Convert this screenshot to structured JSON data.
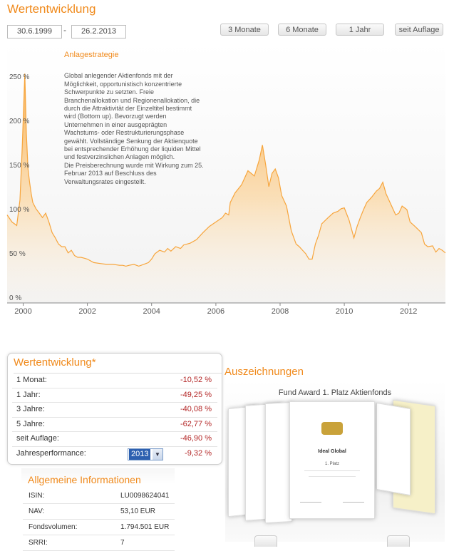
{
  "header": {
    "title": "Wertentwicklung",
    "date_from": "30.6.1999",
    "date_to": "26.2.2013",
    "range_buttons": [
      "3 Monate",
      "6 Monate",
      "1 Jahr",
      "seit Auflage"
    ]
  },
  "strategy": {
    "title": "Anlagestrategie",
    "text": "Global anlegender Aktienfonds mit der Möglichkeit, opportunistisch konzentrierte Schwerpunkte zu setzten. Freie Branchenallokation und Regionenallokation, die durch die Attraktivität der Einzeltitel bestimmt wird (Bottom up). Bevorzugt werden Unternehmen in einer ausgeprägten Wachstums- oder Restrukturierungsphase gewählt. Vollständige Senkung der Aktienquote bei entsprechender Erhöhung der liquiden Mittel und festverzinslichen Anlagen möglich.",
    "note": "Die Preisberechnung wurde mit Wirkung zum 25. Februar 2013 auf Beschluss des Verwaltungsrates eingestellt."
  },
  "chart_data": {
    "type": "area",
    "title": "Wertentwicklung",
    "xlabel": "",
    "ylabel": "",
    "xlim": [
      1999.5,
      2013.15
    ],
    "ylim": [
      0,
      250
    ],
    "y_ticks": [
      0,
      50,
      100,
      150,
      200,
      250
    ],
    "y_tick_labels": [
      "0 %",
      "50 %",
      "100 %",
      "150 %",
      "200 %",
      "250 %"
    ],
    "x_ticks": [
      2000,
      2002,
      2004,
      2006,
      2008,
      2010,
      2012
    ],
    "x_tick_labels": [
      "2000",
      "2002",
      "2004",
      "2006",
      "2008",
      "2010",
      "2012"
    ],
    "grid": false,
    "series": [
      {
        "name": "Wertentwicklung",
        "color": "#f7a53c",
        "x": [
          1999.5,
          1999.65,
          1999.8,
          1999.9,
          1999.97,
          2000.05,
          2000.1,
          2000.15,
          2000.2,
          2000.25,
          2000.3,
          2000.4,
          2000.5,
          2000.6,
          2000.7,
          2000.8,
          2000.9,
          2001.0,
          2001.1,
          2001.2,
          2001.3,
          2001.4,
          2001.5,
          2001.6,
          2001.7,
          2001.8,
          2001.9,
          2002.0,
          2002.2,
          2002.4,
          2002.6,
          2002.8,
          2003.0,
          2003.1,
          2003.2,
          2003.3,
          2003.45,
          2003.6,
          2003.75,
          2003.9,
          2004.0,
          2004.1,
          2004.25,
          2004.4,
          2004.5,
          2004.6,
          2004.75,
          2004.9,
          2005.0,
          2005.2,
          2005.4,
          2005.6,
          2005.8,
          2006.0,
          2006.2,
          2006.3,
          2006.4,
          2006.45,
          2006.6,
          2006.8,
          2007.0,
          2007.2,
          2007.35,
          2007.45,
          2007.55,
          2007.65,
          2007.75,
          2007.85,
          2007.95,
          2008.05,
          2008.2,
          2008.35,
          2008.5,
          2008.6,
          2008.7,
          2008.8,
          2008.9,
          2009.0,
          2009.1,
          2009.2,
          2009.3,
          2009.5,
          2009.65,
          2009.8,
          2009.9,
          2010.0,
          2010.15,
          2010.3,
          2010.4,
          2010.5,
          2010.6,
          2010.7,
          2010.85,
          2011.0,
          2011.1,
          2011.2,
          2011.3,
          2011.45,
          2011.6,
          2011.7,
          2011.8,
          2011.95,
          2012.05,
          2012.2,
          2012.4,
          2012.5,
          2012.6,
          2012.75,
          2012.85,
          2012.95,
          2013.05,
          2013.15
        ],
        "values": [
          98,
          90,
          86,
          115,
          175,
          258,
          190,
          150,
          135,
          122,
          112,
          105,
          100,
          95,
          100,
          90,
          78,
          72,
          65,
          62,
          62,
          55,
          58,
          52,
          50,
          50,
          49,
          48,
          44,
          43,
          42,
          42,
          41,
          41,
          40,
          41,
          42,
          40,
          42,
          44,
          48,
          54,
          58,
          56,
          60,
          57,
          62,
          60,
          64,
          66,
          70,
          78,
          85,
          90,
          95,
          100,
          98,
          112,
          123,
          132,
          148,
          142,
          160,
          177,
          155,
          130,
          145,
          150,
          140,
          120,
          108,
          80,
          65,
          62,
          58,
          54,
          48,
          48,
          65,
          75,
          88,
          95,
          100,
          102,
          105,
          106,
          92,
          72,
          85,
          95,
          104,
          112,
          118,
          125,
          128,
          135,
          122,
          110,
          98,
          100,
          108,
          104,
          90,
          85,
          78,
          65,
          62,
          63,
          56,
          60,
          58,
          55
        ]
      }
    ]
  },
  "performance": {
    "title": "Wertentwicklung*",
    "rows": [
      {
        "label": "1 Monat:",
        "value": "-10,52 %"
      },
      {
        "label": "1 Jahr:",
        "value": "-49,25 %"
      },
      {
        "label": "3 Jahre:",
        "value": "-40,08 %"
      },
      {
        "label": "5 Jahre:",
        "value": "-62,77 %"
      },
      {
        "label": "seit Auflage:",
        "value": "-46,90 %"
      }
    ],
    "yearly_label": "Jahresperformance:",
    "selected_year": "2013",
    "yearly_value": "-9,32 %"
  },
  "info": {
    "title": "Allgemeine Informationen",
    "rows": [
      {
        "label": "ISIN:",
        "value": "LU0098624041"
      },
      {
        "label": "NAV:",
        "value": "53,10 EUR"
      },
      {
        "label": "Fondsvolumen:",
        "value": "1.794.501 EUR"
      },
      {
        "label": "SRRI:",
        "value": "7"
      }
    ]
  },
  "awards": {
    "title": "Auszeichnungen",
    "caption": "Fund Award 1. Platz Aktienfonds",
    "cert_heading": "Ideal Global",
    "cert_place": "1. Platz"
  }
}
